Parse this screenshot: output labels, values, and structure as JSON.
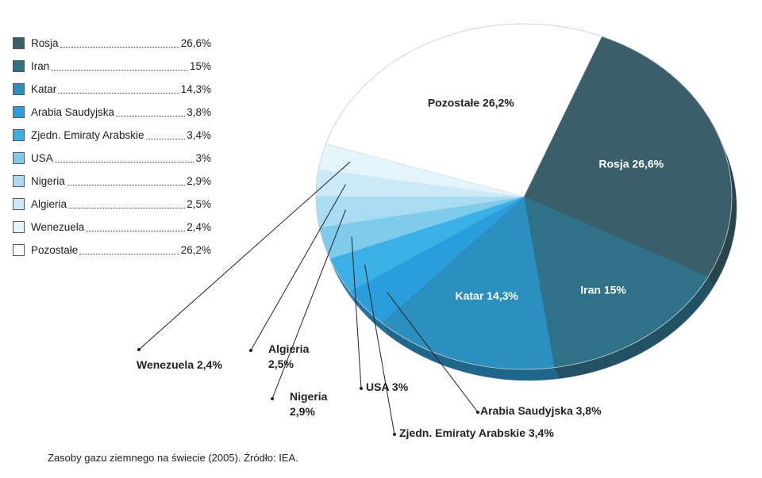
{
  "chart_data": {
    "type": "pie",
    "title": "",
    "slices": [
      {
        "name": "Rosja",
        "value": 26.6,
        "label": "26,6%",
        "color": "#3b5f6a",
        "label_text": "Rosja 26,6%"
      },
      {
        "name": "Iran",
        "value": 15,
        "label": "15%",
        "color": "#2f7189",
        "label_text": "Iran 15%"
      },
      {
        "name": "Katar",
        "value": 14.3,
        "label": "14,3%",
        "color": "#2b8fc0",
        "label_text": "Katar 14,3%"
      },
      {
        "name": "Arabia Saudyjska",
        "value": 3.8,
        "label": "3,8%",
        "color": "#2a9edc",
        "label_text": "Arabia Saudyjska 3,8%"
      },
      {
        "name": "Zjedn. Emiraty Arabskie",
        "value": 3.4,
        "label": "3,4%",
        "color": "#3ab0e6",
        "label_text": "Zjedn. Emiraty Arabskie 3,4%"
      },
      {
        "name": "USA",
        "value": 3,
        "label": "3%",
        "color": "#7fcbec",
        "label_text": "USA 3%"
      },
      {
        "name": "Nigeria",
        "value": 2.9,
        "label": "2,9%",
        "color": "#a9dbf2",
        "label_text": "Nigeria 2,9%"
      },
      {
        "name": "Algieria",
        "value": 2.5,
        "label": "2,5%",
        "color": "#cbe9f7",
        "label_text": "Algieria 2,5%"
      },
      {
        "name": "Wenezuela",
        "value": 2.4,
        "label": "2,4%",
        "color": "#e4f4fb",
        "label_text": "Wenezuela 2,4%"
      },
      {
        "name": "Pozostałe",
        "value": 26.2,
        "label": "26,2%",
        "color": "#ffffff",
        "label_text": "Pozostałe 26,2%"
      }
    ],
    "legend_position": "top-left"
  },
  "caption": "Zasoby gazu ziemnego na świecie (2005). Źródło: IEA."
}
